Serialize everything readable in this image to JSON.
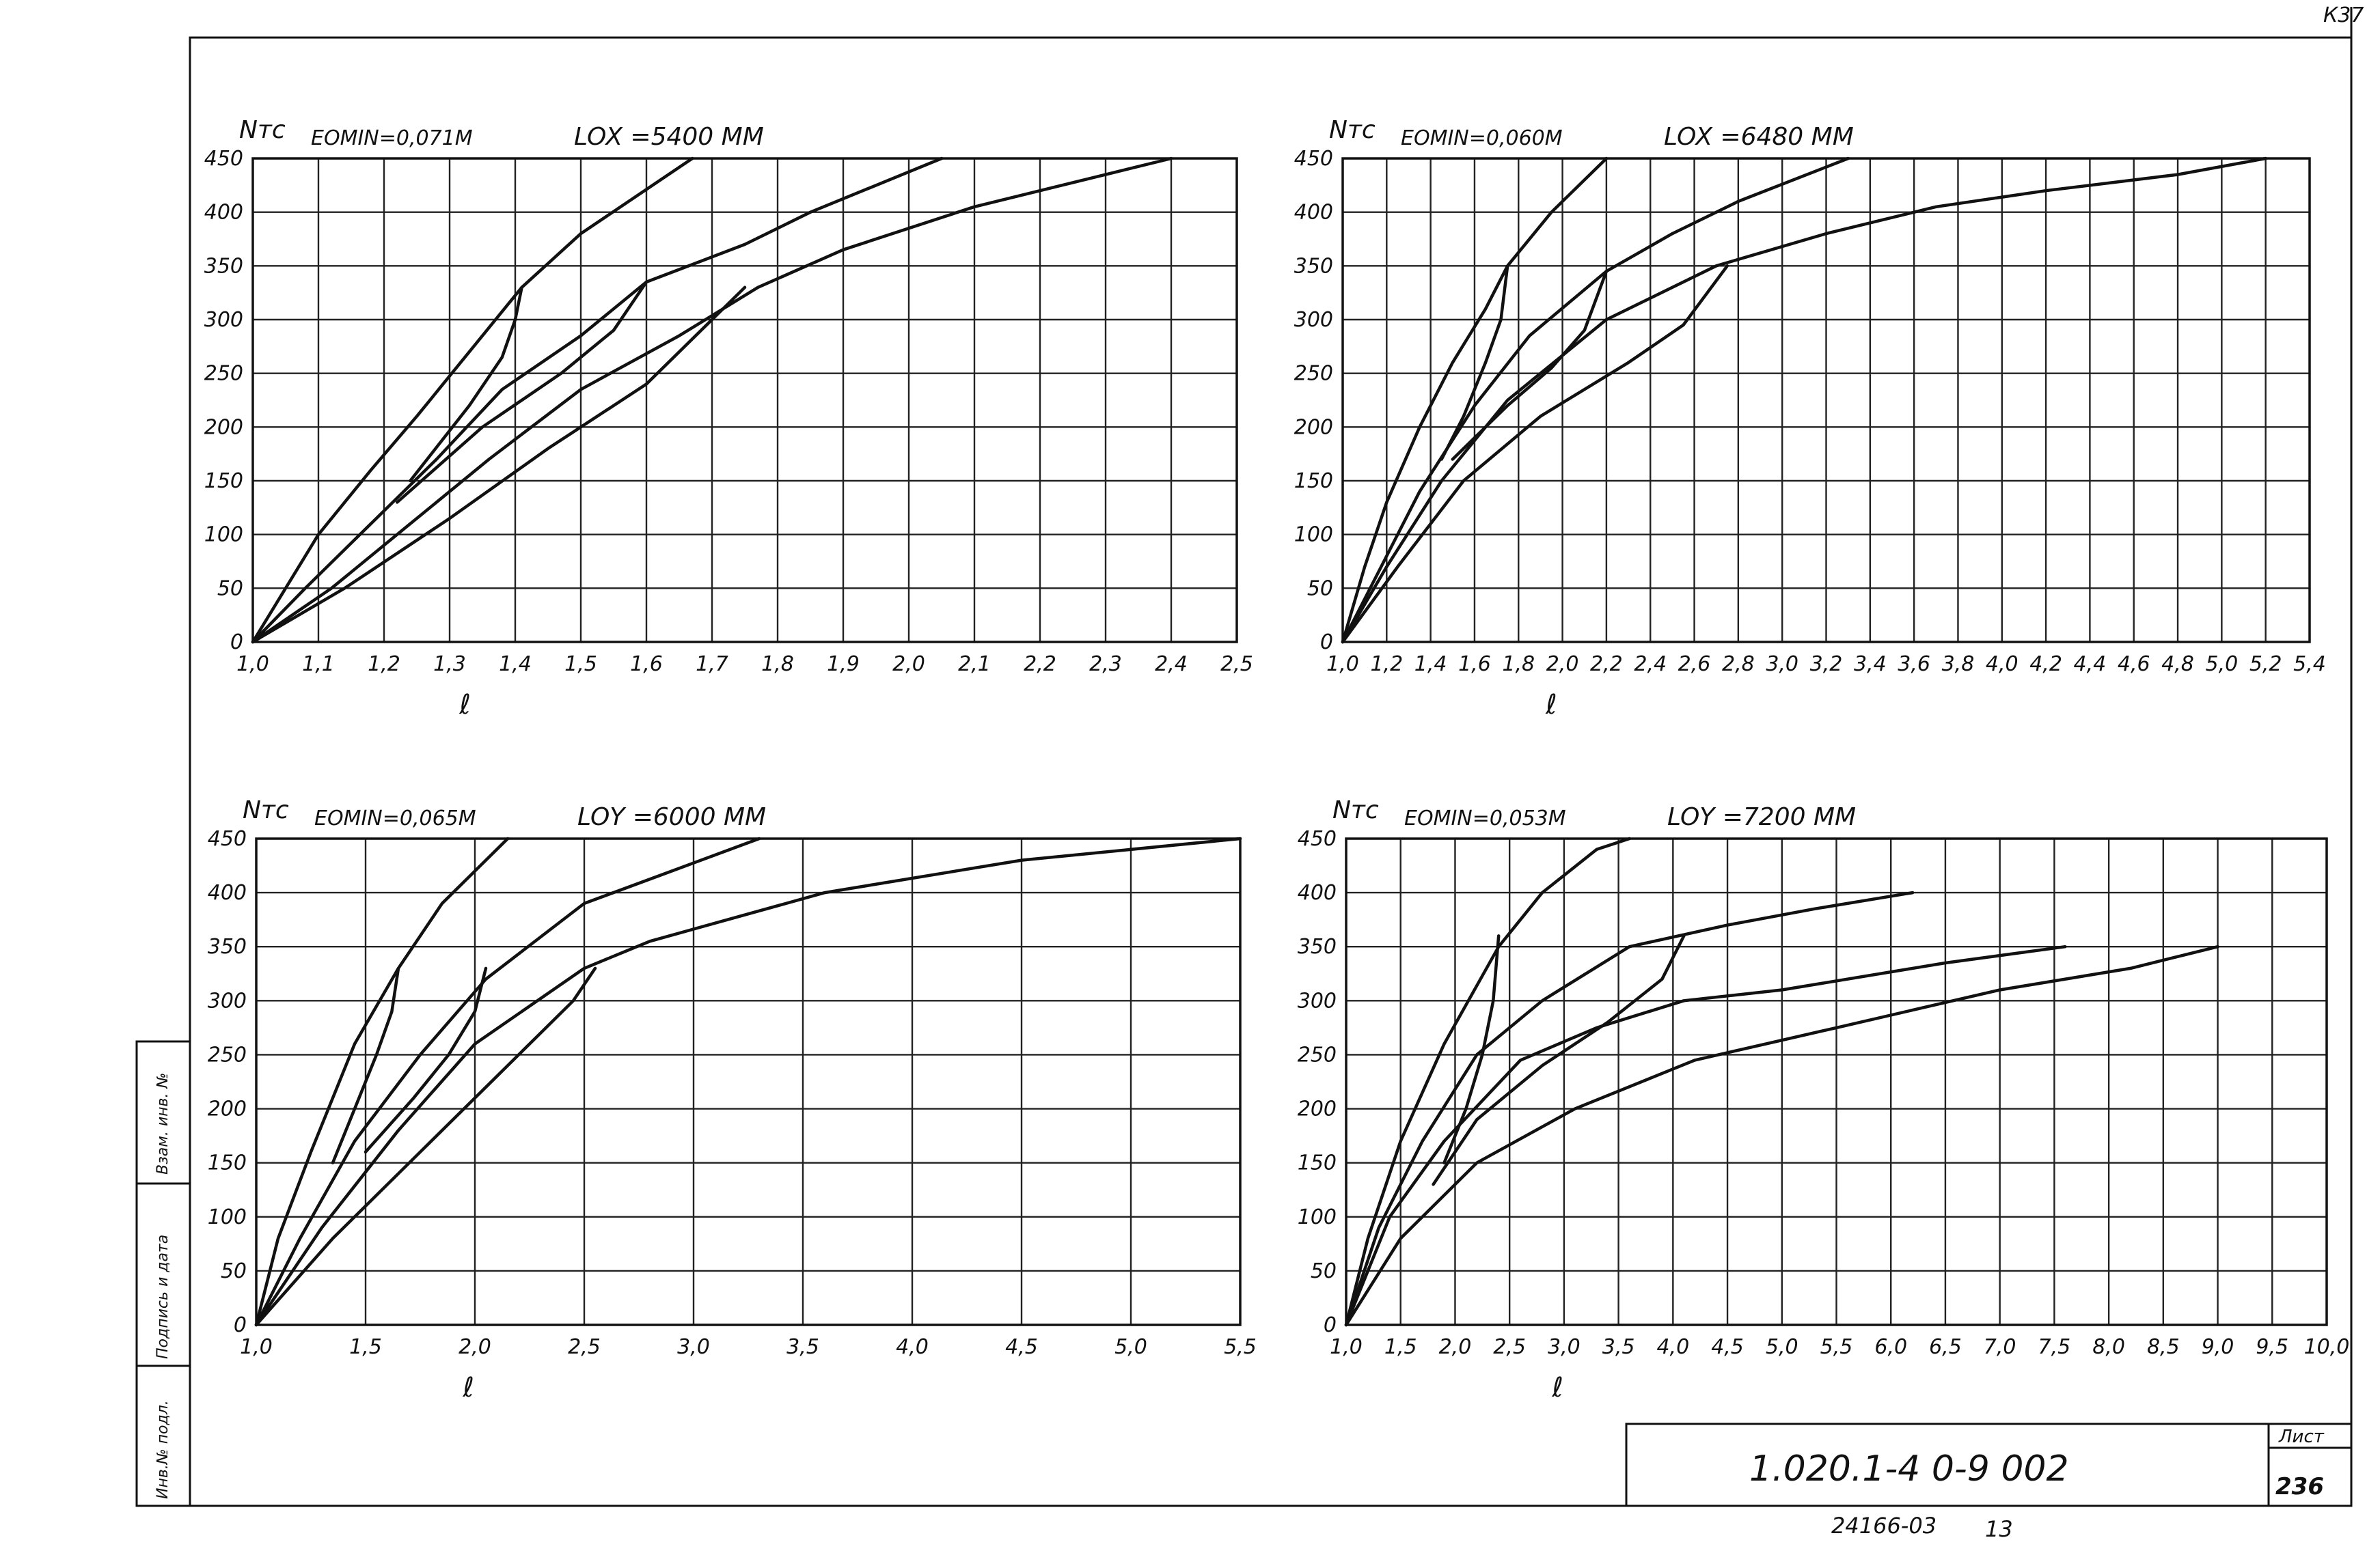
{
  "sheet": {
    "corner_code": "К37",
    "designation": "1.020.1-4 0-9 002",
    "sheet_label": "Лист",
    "sheet_number": "236",
    "bottom_code": "24166-03",
    "bottom_number": "13",
    "margin_labels": [
      "Инв.№ подл.",
      "Подпись и дата",
      "Взам. инв. №"
    ]
  },
  "chart_data": [
    {
      "type": "line",
      "ylabel": "Nтс",
      "xlabel": "ℓ",
      "param_left": "EOMIN=0,071M",
      "param_right": "LOX =5400 ММ",
      "xlim": [
        1.0,
        2.5
      ],
      "ylim": [
        0,
        450
      ],
      "x_ticks": [
        "1,0",
        "1,1",
        "1,2",
        "1,3",
        "1,4",
        "1,5",
        "1,6",
        "1,7",
        "1,8",
        "1,9",
        "2,0",
        "2,1",
        "2,2",
        "2,3",
        "2,4",
        "2,5"
      ],
      "y_ticks": [
        "0",
        "50",
        "100",
        "150",
        "200",
        "250",
        "300",
        "350",
        "400",
        "450"
      ],
      "series": [
        {
          "points": [
            [
              1.0,
              0
            ],
            [
              1.05,
              50
            ],
            [
              1.1,
              100
            ],
            [
              1.18,
              160
            ],
            [
              1.25,
              210
            ],
            [
              1.33,
              270
            ],
            [
              1.41,
              330
            ],
            [
              1.5,
              380
            ],
            [
              1.67,
              450
            ]
          ]
        },
        {
          "points": [
            [
              1.0,
              0
            ],
            [
              1.08,
              50
            ],
            [
              1.18,
              110
            ],
            [
              1.28,
              170
            ],
            [
              1.38,
              235
            ],
            [
              1.5,
              285
            ],
            [
              1.6,
              335
            ],
            [
              1.75,
              370
            ],
            [
              1.85,
              400
            ],
            [
              2.05,
              450
            ]
          ]
        },
        {
          "points": [
            [
              1.0,
              0
            ],
            [
              1.12,
              50
            ],
            [
              1.24,
              110
            ],
            [
              1.36,
              170
            ],
            [
              1.5,
              235
            ],
            [
              1.65,
              285
            ],
            [
              1.77,
              330
            ],
            [
              1.9,
              365
            ],
            [
              2.1,
              405
            ],
            [
              2.4,
              450
            ]
          ]
        },
        {
          "points": [
            [
              1.0,
              0
            ],
            [
              1.14,
              50
            ],
            [
              1.3,
              115
            ],
            [
              1.45,
              180
            ],
            [
              1.6,
              240
            ],
            [
              1.7,
              300
            ],
            [
              1.75,
              330
            ]
          ]
        },
        {
          "points": [
            [
              1.41,
              330
            ],
            [
              1.4,
              300
            ],
            [
              1.38,
              265
            ],
            [
              1.33,
              220
            ],
            [
              1.24,
              150
            ]
          ]
        },
        {
          "points": [
            [
              1.6,
              335
            ],
            [
              1.55,
              290
            ],
            [
              1.47,
              250
            ],
            [
              1.35,
              200
            ],
            [
              1.22,
              130
            ]
          ]
        }
      ]
    },
    {
      "type": "line",
      "ylabel": "Nтс",
      "xlabel": "ℓ",
      "param_left": "EOMIN=0,060M",
      "param_right": "LOX =6480 ММ",
      "xlim": [
        1.0,
        5.4
      ],
      "ylim": [
        0,
        450
      ],
      "x_ticks": [
        "1,0",
        "1,2",
        "1,4",
        "1,6",
        "1,8",
        "2,0",
        "2,2",
        "2,4",
        "2,6",
        "2,8",
        "3,0",
        "3,2",
        "3,4",
        "3,6",
        "3,8",
        "4,0",
        "4,2",
        "4,4",
        "4,6",
        "4,8",
        "5,0",
        "5,2",
        "5,4"
      ],
      "y_ticks": [
        "0",
        "50",
        "100",
        "150",
        "200",
        "250",
        "300",
        "350",
        "400",
        "450"
      ],
      "series": [
        {
          "points": [
            [
              1.0,
              0
            ],
            [
              1.1,
              70
            ],
            [
              1.2,
              130
            ],
            [
              1.35,
              200
            ],
            [
              1.5,
              260
            ],
            [
              1.65,
              310
            ],
            [
              1.75,
              350
            ],
            [
              1.95,
              400
            ],
            [
              2.2,
              450
            ]
          ]
        },
        {
          "points": [
            [
              1.0,
              0
            ],
            [
              1.15,
              60
            ],
            [
              1.35,
              140
            ],
            [
              1.6,
              220
            ],
            [
              1.85,
              285
            ],
            [
              2.2,
              345
            ],
            [
              2.5,
              380
            ],
            [
              2.8,
              410
            ],
            [
              3.3,
              450
            ]
          ]
        },
        {
          "points": [
            [
              1.0,
              0
            ],
            [
              1.2,
              70
            ],
            [
              1.45,
              150
            ],
            [
              1.75,
              225
            ],
            [
              2.2,
              300
            ],
            [
              2.7,
              350
            ],
            [
              3.2,
              380
            ],
            [
              3.7,
              405
            ],
            [
              4.2,
              420
            ],
            [
              4.8,
              435
            ],
            [
              5.2,
              450
            ]
          ]
        },
        {
          "points": [
            [
              1.0,
              0
            ],
            [
              1.25,
              70
            ],
            [
              1.55,
              150
            ],
            [
              1.9,
              210
            ],
            [
              2.3,
              260
            ],
            [
              2.55,
              295
            ],
            [
              2.75,
              350
            ]
          ]
        },
        {
          "points": [
            [
              1.75,
              350
            ],
            [
              1.72,
              300
            ],
            [
              1.65,
              260
            ],
            [
              1.55,
              210
            ],
            [
              1.45,
              170
            ]
          ]
        },
        {
          "points": [
            [
              2.2,
              345
            ],
            [
              2.1,
              290
            ],
            [
              1.95,
              255
            ],
            [
              1.75,
              220
            ],
            [
              1.5,
              170
            ]
          ]
        }
      ]
    },
    {
      "type": "line",
      "ylabel": "Nтс",
      "xlabel": "ℓ",
      "param_left": "EOMIN=0,065M",
      "param_right": "LOY =6000 ММ",
      "xlim": [
        1.0,
        5.5
      ],
      "ylim": [
        0,
        450
      ],
      "x_ticks": [
        "1,0",
        "1,5",
        "2,0",
        "2,5",
        "3,0",
        "3,5",
        "4,0",
        "4,5",
        "5,0",
        "5,5"
      ],
      "y_ticks": [
        "0",
        "50",
        "100",
        "150",
        "200",
        "250",
        "300",
        "350",
        "400",
        "450"
      ],
      "series": [
        {
          "points": [
            [
              1.0,
              0
            ],
            [
              1.1,
              80
            ],
            [
              1.25,
              160
            ],
            [
              1.45,
              260
            ],
            [
              1.65,
              330
            ],
            [
              1.85,
              390
            ],
            [
              2.15,
              450
            ]
          ]
        },
        {
          "points": [
            [
              1.0,
              0
            ],
            [
              1.2,
              80
            ],
            [
              1.45,
              170
            ],
            [
              1.75,
              250
            ],
            [
              2.05,
              320
            ],
            [
              2.5,
              390
            ],
            [
              2.9,
              420
            ],
            [
              3.3,
              450
            ]
          ]
        },
        {
          "points": [
            [
              1.0,
              0
            ],
            [
              1.3,
              90
            ],
            [
              1.65,
              180
            ],
            [
              2.0,
              260
            ],
            [
              2.5,
              330
            ],
            [
              2.8,
              355
            ],
            [
              3.6,
              400
            ],
            [
              4.5,
              430
            ],
            [
              5.5,
              450
            ]
          ]
        },
        {
          "points": [
            [
              1.0,
              0
            ],
            [
              1.35,
              80
            ],
            [
              1.75,
              160
            ],
            [
              2.1,
              230
            ],
            [
              2.45,
              300
            ],
            [
              2.55,
              330
            ]
          ]
        },
        {
          "points": [
            [
              1.65,
              330
            ],
            [
              1.62,
              290
            ],
            [
              1.55,
              250
            ],
            [
              1.45,
              200
            ],
            [
              1.35,
              150
            ]
          ]
        },
        {
          "points": [
            [
              2.05,
              330
            ],
            [
              2.0,
              290
            ],
            [
              1.88,
              250
            ],
            [
              1.72,
              210
            ],
            [
              1.5,
              160
            ]
          ]
        }
      ]
    },
    {
      "type": "line",
      "ylabel": "Nтс",
      "xlabel": "ℓ",
      "param_left": "EOMIN=0,053M",
      "param_right": "LOY =7200 ММ",
      "xlim": [
        1.0,
        10.0
      ],
      "ylim": [
        0,
        450
      ],
      "x_ticks": [
        "1,0",
        "1,5",
        "2,0",
        "2,5",
        "3,0",
        "3,5",
        "4,0",
        "4,5",
        "5,0",
        "5,5",
        "6,0",
        "6,5",
        "7,0",
        "7,5",
        "8,0",
        "8,5",
        "9,0",
        "9,5",
        "10,0"
      ],
      "y_ticks": [
        "0",
        "50",
        "100",
        "150",
        "200",
        "250",
        "300",
        "350",
        "400",
        "450"
      ],
      "series": [
        {
          "points": [
            [
              1.0,
              0
            ],
            [
              1.2,
              80
            ],
            [
              1.5,
              170
            ],
            [
              1.9,
              260
            ],
            [
              2.4,
              350
            ],
            [
              2.8,
              400
            ],
            [
              3.3,
              440
            ],
            [
              3.6,
              450
            ]
          ]
        },
        {
          "points": [
            [
              1.0,
              0
            ],
            [
              1.3,
              90
            ],
            [
              1.7,
              170
            ],
            [
              2.2,
              250
            ],
            [
              2.8,
              300
            ],
            [
              3.6,
              350
            ],
            [
              4.5,
              370
            ],
            [
              5.3,
              385
            ],
            [
              6.2,
              400
            ]
          ]
        },
        {
          "points": [
            [
              1.0,
              0
            ],
            [
              1.4,
              100
            ],
            [
              1.9,
              170
            ],
            [
              2.6,
              245
            ],
            [
              3.3,
              275
            ],
            [
              4.1,
              300
            ],
            [
              5.0,
              310
            ],
            [
              6.5,
              335
            ],
            [
              7.6,
              350
            ]
          ]
        },
        {
          "points": [
            [
              1.0,
              0
            ],
            [
              1.5,
              80
            ],
            [
              2.2,
              150
            ],
            [
              3.1,
              200
            ],
            [
              4.2,
              245
            ],
            [
              5.5,
              275
            ],
            [
              7.0,
              310
            ],
            [
              8.2,
              330
            ],
            [
              9.0,
              350
            ]
          ]
        },
        {
          "points": [
            [
              2.4,
              360
            ],
            [
              2.35,
              300
            ],
            [
              2.25,
              250
            ],
            [
              2.1,
              200
            ],
            [
              1.9,
              150
            ]
          ]
        },
        {
          "points": [
            [
              4.1,
              360
            ],
            [
              3.9,
              320
            ],
            [
              3.4,
              280
            ],
            [
              2.8,
              240
            ],
            [
              2.2,
              190
            ],
            [
              1.8,
              130
            ]
          ]
        }
      ]
    }
  ]
}
